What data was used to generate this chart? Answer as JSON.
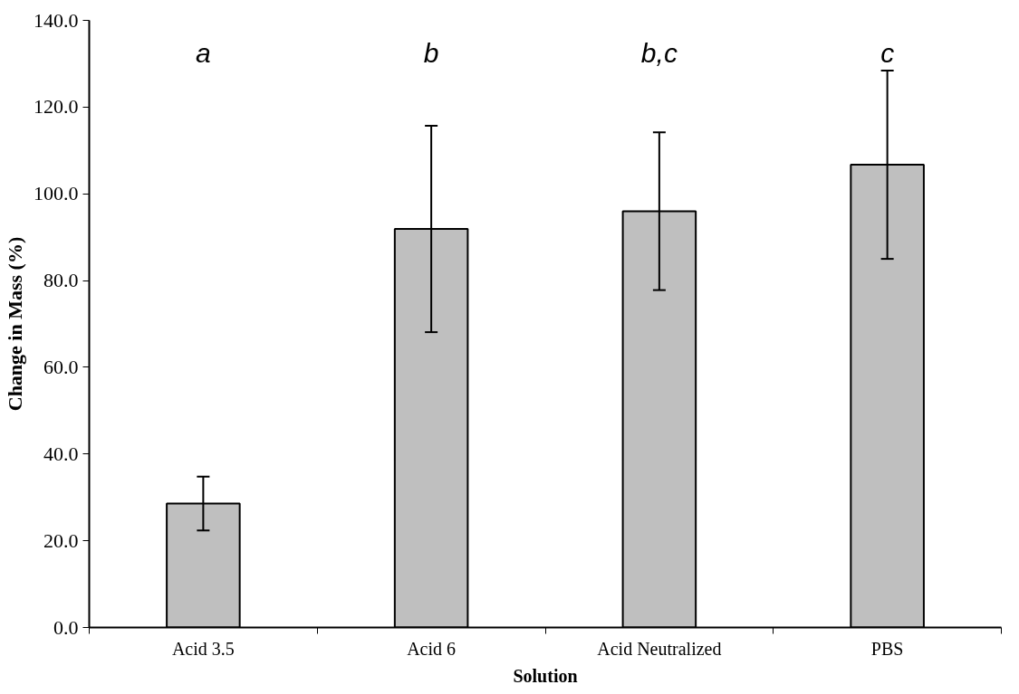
{
  "chart_data": {
    "type": "bar",
    "xlabel": "Solution",
    "ylabel": "Change in Mass (%)",
    "categories": [
      "Acid 3.5",
      "Acid 6",
      "Acid Neutralized",
      "PBS"
    ],
    "series": [
      {
        "color": "#bfbfbf",
        "values": [
          28.6,
          91.9,
          96.0,
          106.7
        ],
        "errors": [
          6.2,
          23.8,
          18.2,
          21.7
        ]
      }
    ],
    "ylim": [
      0,
      140
    ],
    "yticks": [
      {
        "value": 0,
        "label": "0.0"
      },
      {
        "value": 20,
        "label": "20.0"
      },
      {
        "value": 40,
        "label": "40.0"
      },
      {
        "value": 60,
        "label": "60.0"
      },
      {
        "value": 80,
        "label": "80.0"
      },
      {
        "value": 100,
        "label": "100.0"
      },
      {
        "value": 120,
        "label": "120.0"
      },
      {
        "value": 140,
        "label": "140.0"
      }
    ],
    "annotations": [
      "a",
      "b",
      "b,c",
      "c"
    ],
    "grid": false
  }
}
